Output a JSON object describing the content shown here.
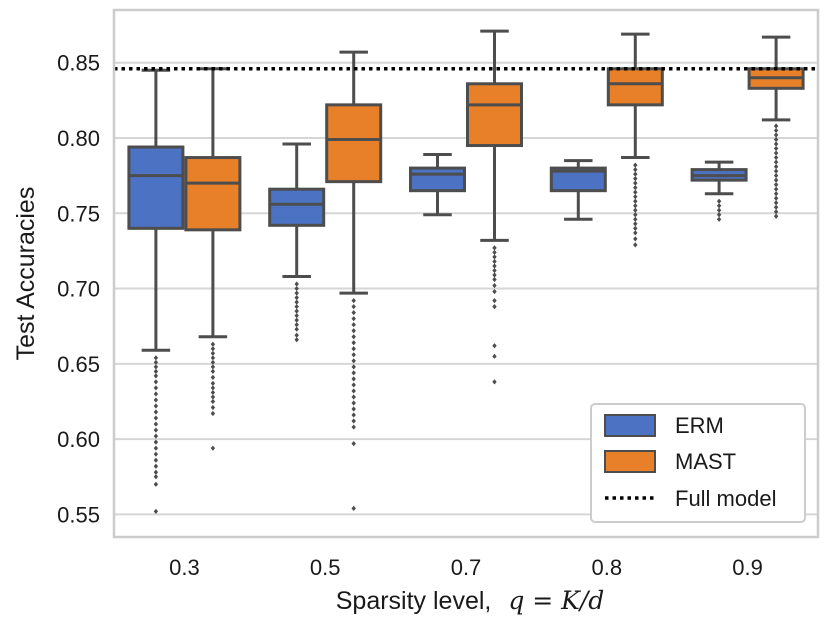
{
  "chart_data": {
    "type": "boxplot",
    "xlabel": "Sparsity level,",
    "xlabel_math": "q = K/d",
    "ylabel": "Test Accuracies",
    "ylim": [
      0.535,
      0.885
    ],
    "yticks": [
      "0.55",
      "0.60",
      "0.65",
      "0.70",
      "0.75",
      "0.80",
      "0.85"
    ],
    "grid": true,
    "legend_position": "bottom-right",
    "categories": [
      "0.3",
      "0.5",
      "0.7",
      "0.8",
      "0.9"
    ],
    "reference_line": {
      "name": "Full model",
      "value": 0.846,
      "style": "dotted",
      "color": "#000000"
    },
    "series": [
      {
        "name": "ERM",
        "color": "#4c72c4",
        "boxes": [
          {
            "whisker_low": 0.659,
            "q1": 0.74,
            "median": 0.775,
            "q3": 0.794,
            "whisker_high": 0.845,
            "outliers": [
              0.654,
              0.651,
              0.648,
              0.645,
              0.642,
              0.638,
              0.634,
              0.63,
              0.626,
              0.622,
              0.618,
              0.614,
              0.61,
              0.606,
              0.602,
              0.598,
              0.594,
              0.59,
              0.586,
              0.582,
              0.578,
              0.575,
              0.57,
              0.552
            ]
          },
          {
            "whisker_low": 0.708,
            "q1": 0.742,
            "median": 0.756,
            "q3": 0.766,
            "whisker_high": 0.796,
            "outliers": [
              0.703,
              0.7,
              0.697,
              0.694,
              0.691,
              0.688,
              0.685,
              0.682,
              0.679,
              0.676,
              0.673,
              0.669,
              0.666
            ]
          },
          {
            "whisker_low": 0.749,
            "q1": 0.765,
            "median": 0.776,
            "q3": 0.78,
            "whisker_high": 0.789,
            "outliers": []
          },
          {
            "whisker_low": 0.746,
            "q1": 0.765,
            "median": 0.778,
            "q3": 0.78,
            "whisker_high": 0.785,
            "outliers": []
          },
          {
            "whisker_low": 0.763,
            "q1": 0.772,
            "median": 0.775,
            "q3": 0.779,
            "whisker_high": 0.784,
            "outliers": [
              0.758,
              0.755,
              0.752,
              0.749,
              0.746
            ]
          }
        ]
      },
      {
        "name": "MAST",
        "color": "#e8802a",
        "boxes": [
          {
            "whisker_low": 0.668,
            "q1": 0.739,
            "median": 0.77,
            "q3": 0.787,
            "whisker_high": 0.846,
            "outliers": [
              0.663,
              0.66,
              0.657,
              0.654,
              0.651,
              0.648,
              0.645,
              0.641,
              0.637,
              0.634,
              0.631,
              0.628,
              0.625,
              0.621,
              0.617,
              0.594
            ]
          },
          {
            "whisker_low": 0.697,
            "q1": 0.771,
            "median": 0.799,
            "q3": 0.822,
            "whisker_high": 0.857,
            "outliers": [
              0.692,
              0.688,
              0.684,
              0.68,
              0.676,
              0.672,
              0.668,
              0.664,
              0.66,
              0.656,
              0.652,
              0.648,
              0.644,
              0.64,
              0.636,
              0.632,
              0.628,
              0.624,
              0.62,
              0.616,
              0.612,
              0.608,
              0.597,
              0.554
            ]
          },
          {
            "whisker_low": 0.732,
            "q1": 0.795,
            "median": 0.822,
            "q3": 0.836,
            "whisker_high": 0.871,
            "outliers": [
              0.727,
              0.724,
              0.721,
              0.718,
              0.715,
              0.712,
              0.709,
              0.706,
              0.702,
              0.698,
              0.692,
              0.688,
              0.662,
              0.655,
              0.638
            ]
          },
          {
            "whisker_low": 0.787,
            "q1": 0.822,
            "median": 0.836,
            "q3": 0.846,
            "whisker_high": 0.869,
            "outliers": [
              0.782,
              0.779,
              0.776,
              0.773,
              0.77,
              0.767,
              0.764,
              0.761,
              0.758,
              0.755,
              0.752,
              0.749,
              0.746,
              0.743,
              0.74,
              0.737,
              0.733,
              0.729
            ]
          },
          {
            "whisker_low": 0.812,
            "q1": 0.833,
            "median": 0.84,
            "q3": 0.846,
            "whisker_high": 0.867,
            "outliers": [
              0.808,
              0.805,
              0.802,
              0.799,
              0.796,
              0.793,
              0.79,
              0.787,
              0.784,
              0.781,
              0.778,
              0.775,
              0.772,
              0.769,
              0.766,
              0.763,
              0.76,
              0.757,
              0.754,
              0.751,
              0.748
            ]
          }
        ]
      }
    ]
  }
}
